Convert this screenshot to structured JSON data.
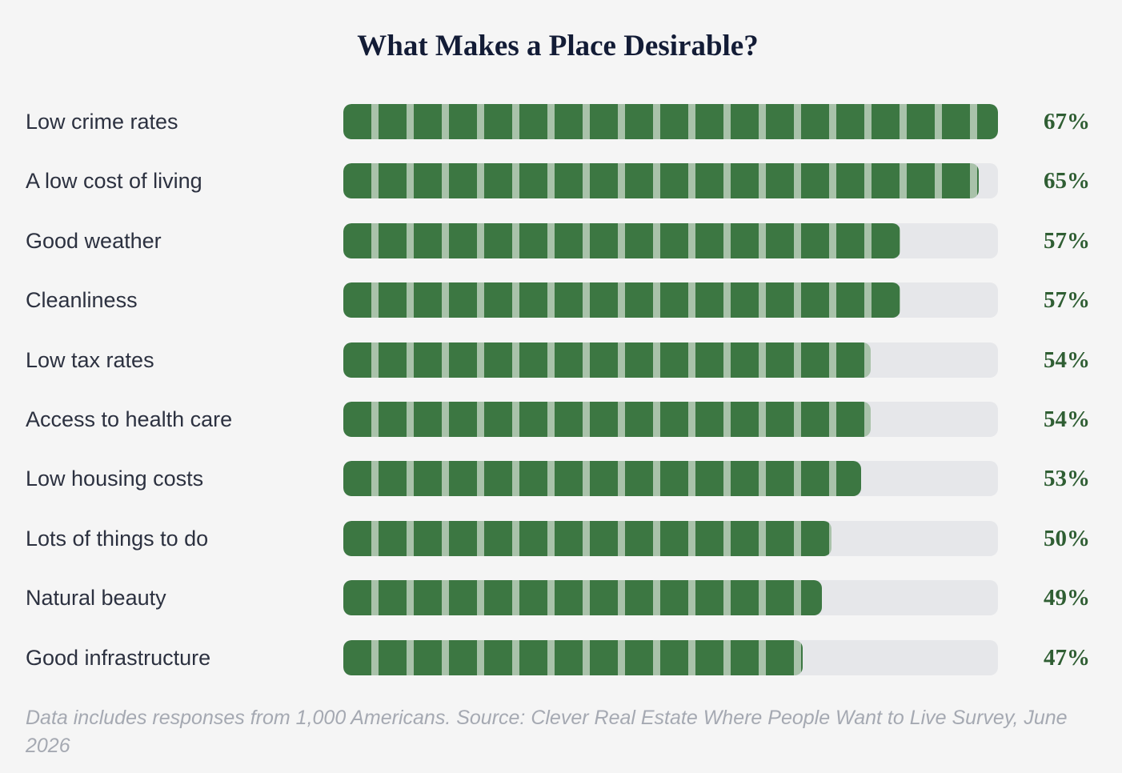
{
  "chart_data": {
    "type": "bar",
    "orientation": "horizontal",
    "title": "What Makes a Place Desirable?",
    "categories": [
      "Low crime rates",
      "A low cost of living",
      "Good weather",
      "Cleanliness",
      "Low tax rates",
      "Access to health care",
      "Low housing costs",
      "Lots of things to do",
      "Natural beauty",
      "Good infrastructure"
    ],
    "values": [
      67,
      65,
      57,
      57,
      54,
      54,
      53,
      50,
      49,
      47
    ],
    "value_labels": [
      "67%",
      "65%",
      "57%",
      "57%",
      "54%",
      "54%",
      "53%",
      "50%",
      "49%",
      "47%"
    ],
    "xlim": [
      0,
      67
    ],
    "grid": false,
    "legend": "none",
    "colors": {
      "bar": "#3c7742",
      "segment_divider": "#a9c2aa",
      "track": "#e6e7ea",
      "value_text": "#2f5e33"
    }
  },
  "footnote": "Data includes responses from 1,000 Americans. Source: Clever Real Estate Where People Want to Live Survey, June 2026"
}
